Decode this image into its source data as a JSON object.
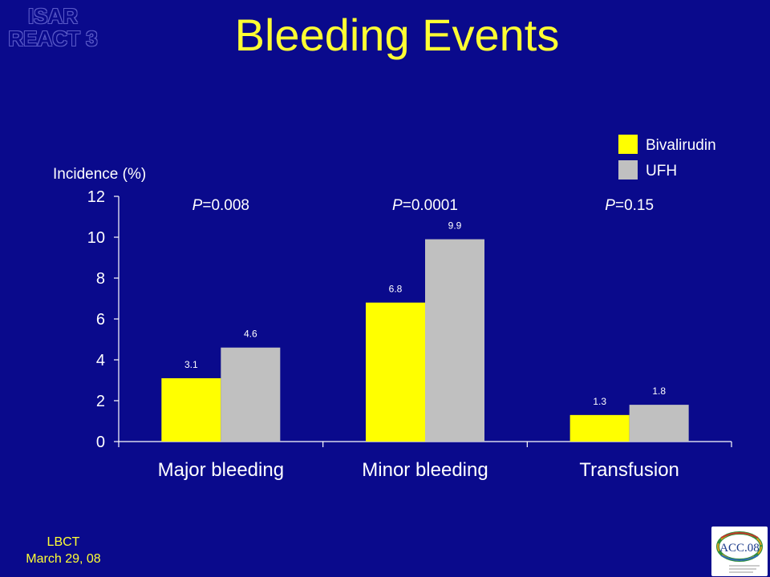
{
  "slide": {
    "title": "Bleeding Events",
    "trial_watermark": [
      "ISAR",
      "REACT 3"
    ],
    "footer": [
      "LBCT",
      "March 29, 08"
    ],
    "logo_text": "ACC.08",
    "colors": {
      "background": "#0a0a8c",
      "title": "#ffff33",
      "bivalirudin": "#ffff00",
      "ufh": "#c0c0c0"
    }
  },
  "chart_data": {
    "type": "bar",
    "title": "Bleeding Events",
    "ylabel": "Incidence (%)",
    "xlabel": "",
    "categories": [
      "Major bleeding",
      "Minor bleeding",
      "Transfusion"
    ],
    "series": [
      {
        "name": "Bivalirudin",
        "values": [
          3.1,
          6.8,
          1.3
        ],
        "color": "#ffff00"
      },
      {
        "name": "UFH",
        "values": [
          4.6,
          9.9,
          1.8
        ],
        "color": "#c0c0c0"
      }
    ],
    "value_labels": [
      [
        "3.1",
        "6.8",
        "1.3"
      ],
      [
        "4.6",
        "9.9",
        "1.8"
      ]
    ],
    "p_values": [
      {
        "label": "P",
        "value": "=0.008"
      },
      {
        "label": "P",
        "value": "=0.0001"
      },
      {
        "label": "P",
        "value": "=0.15"
      }
    ],
    "ylim": [
      0,
      12
    ],
    "yticks": [
      0,
      2,
      4,
      6,
      8,
      10,
      12
    ],
    "grid": false,
    "legend_position": "top-right"
  }
}
